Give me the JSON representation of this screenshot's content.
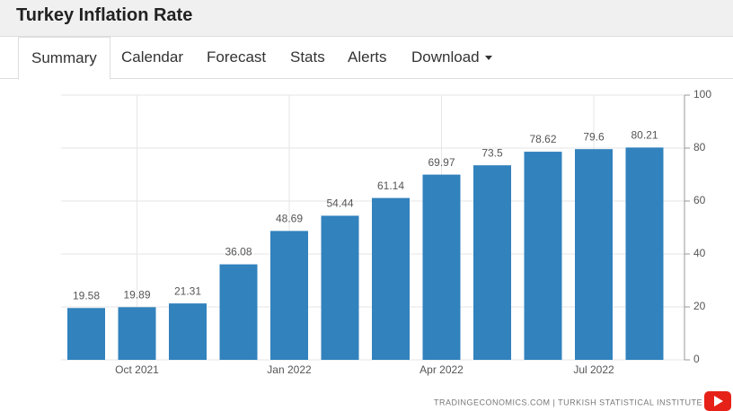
{
  "header": {
    "title": "Turkey Inflation Rate"
  },
  "tabs": [
    "Summary",
    "Calendar",
    "Forecast",
    "Stats",
    "Alerts",
    "Download"
  ],
  "chart_data": {
    "type": "bar",
    "categories": [
      null,
      "Oct 2021",
      null,
      null,
      "Jan 2022",
      null,
      null,
      "Apr 2022",
      null,
      null,
      "Jul 2022",
      null
    ],
    "values": [
      19.58,
      19.89,
      21.31,
      36.08,
      48.69,
      54.44,
      61.14,
      69.97,
      73.5,
      78.62,
      79.6,
      80.21
    ],
    "color": "#3182bd",
    "ylim": [
      0,
      100
    ],
    "yticks": [
      0,
      20,
      40,
      60,
      80,
      100
    ],
    "grid": true,
    "source": "TRADINGECONOMICS.COM  |  TURKISH STATISTICAL INSTITUTE"
  }
}
